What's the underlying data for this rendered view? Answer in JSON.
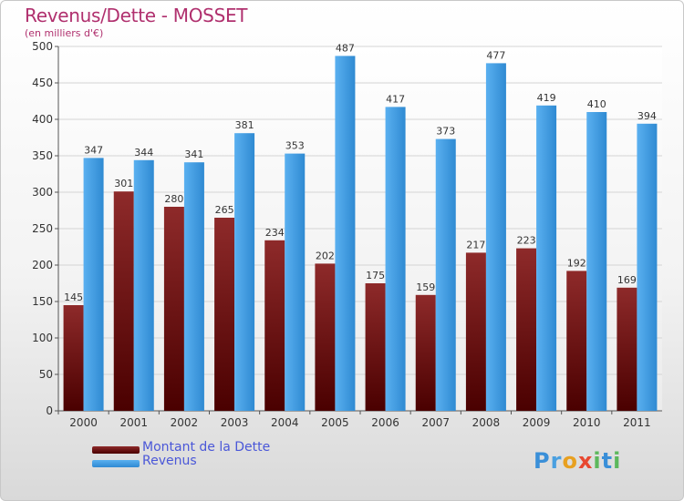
{
  "title": "Revenus/Dette - MOSSET",
  "subtitle": "(en milliers d'€)",
  "colors": {
    "dette": "#7a1616",
    "revenus": "#3d9be3",
    "title": "#b0306e",
    "legend_text": "#4a57d8"
  },
  "legend": {
    "dette_label": "Montant de la Dette",
    "revenus_label": "Revenus"
  },
  "logo": {
    "text": "Proxiti"
  },
  "chart_data": {
    "type": "bar",
    "title": "Revenus/Dette - MOSSET",
    "ylabel": "(en milliers d'€)",
    "categories": [
      "2000",
      "2001",
      "2002",
      "2003",
      "2004",
      "2005",
      "2006",
      "2007",
      "2008",
      "2009",
      "2010",
      "2011"
    ],
    "series": [
      {
        "name": "Montant de la Dette",
        "values": [
          145,
          301,
          280,
          265,
          234,
          202,
          175,
          159,
          217,
          223,
          192,
          169
        ]
      },
      {
        "name": "Revenus",
        "values": [
          347,
          344,
          341,
          381,
          353,
          487,
          417,
          373,
          477,
          419,
          410,
          394
        ]
      }
    ],
    "ylim": [
      0,
      500
    ],
    "yticks": [
      0,
      50,
      100,
      150,
      200,
      250,
      300,
      350,
      400,
      450,
      500
    ],
    "grid": true,
    "legend_position": "bottom-left"
  }
}
